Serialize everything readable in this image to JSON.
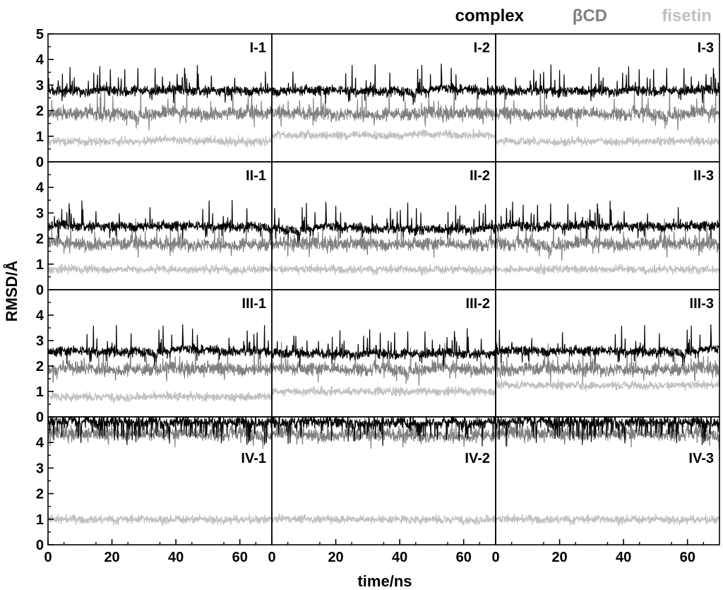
{
  "chart_data": {
    "type": "scatter",
    "title": "",
    "xlabel": "time/ns",
    "ylabel": "RMSD/Å",
    "xlim": [
      0,
      70
    ],
    "ylim": [
      0,
      5
    ],
    "x_ticks": [
      0,
      20,
      40,
      60
    ],
    "y_ticks_top": [
      0,
      1,
      2,
      3,
      4,
      5
    ],
    "y_ticks": [
      0,
      1,
      2,
      3,
      4
    ],
    "sample_step_ns": 0.1,
    "grid": false,
    "legend_position": "top-right",
    "legend": [
      {
        "name": "complex",
        "color": "#000000"
      },
      {
        "name": "βCD",
        "color": "#7f7f7f"
      },
      {
        "name": "fisetin",
        "color": "#c0c0c0"
      }
    ],
    "panels": [
      {
        "label": "I-1",
        "row": 0,
        "col": 0,
        "approx_mean_rmsd": {
          "complex": 2.8,
          "βCD": 1.9,
          "fisetin": 0.8
        }
      },
      {
        "label": "I-2",
        "row": 0,
        "col": 1,
        "approx_mean_rmsd": {
          "complex": 2.8,
          "βCD": 1.9,
          "fisetin": 1.05
        }
      },
      {
        "label": "I-3",
        "row": 0,
        "col": 2,
        "approx_mean_rmsd": {
          "complex": 2.8,
          "βCD": 1.9,
          "fisetin": 0.8
        }
      },
      {
        "label": "II-1",
        "row": 1,
        "col": 0,
        "approx_mean_rmsd": {
          "complex": 2.5,
          "βCD": 1.8,
          "fisetin": 0.8
        }
      },
      {
        "label": "II-2",
        "row": 1,
        "col": 1,
        "approx_mean_rmsd": {
          "complex": 2.4,
          "βCD": 1.8,
          "fisetin": 0.8
        }
      },
      {
        "label": "II-3",
        "row": 1,
        "col": 2,
        "approx_mean_rmsd": {
          "complex": 2.5,
          "βCD": 1.8,
          "fisetin": 0.8
        }
      },
      {
        "label": "III-1",
        "row": 2,
        "col": 0,
        "approx_mean_rmsd": {
          "complex": 2.6,
          "βCD": 1.9,
          "fisetin": 0.8
        }
      },
      {
        "label": "III-2",
        "row": 2,
        "col": 1,
        "approx_mean_rmsd": {
          "complex": 2.5,
          "βCD": 1.9,
          "fisetin": 1.0
        }
      },
      {
        "label": "III-3",
        "row": 2,
        "col": 2,
        "approx_mean_rmsd": {
          "complex": 2.6,
          "βCD": 1.9,
          "fisetin": 1.25
        }
      },
      {
        "label": "IV-1",
        "row": 3,
        "col": 0,
        "approx_mean_rmsd": {
          "complex": 4.8,
          "βCD": 4.35,
          "fisetin": 1.0
        }
      },
      {
        "label": "IV-2",
        "row": 3,
        "col": 1,
        "approx_mean_rmsd": {
          "complex": 4.8,
          "βCD": 4.3,
          "fisetin": 1.0
        }
      },
      {
        "label": "IV-3",
        "row": 3,
        "col": 2,
        "approx_mean_rmsd": {
          "complex": 4.8,
          "βCD": 4.35,
          "fisetin": 1.0
        }
      }
    ]
  }
}
